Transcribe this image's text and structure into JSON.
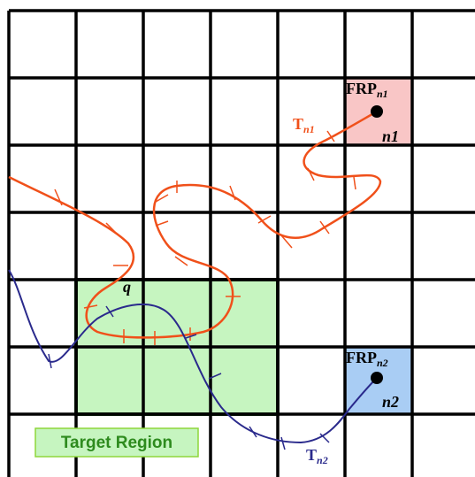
{
  "labels": {
    "frp_n1": {
      "main": "FRP",
      "sub": "n1"
    },
    "cell_n1": "n1",
    "traj_n1": {
      "main": "T",
      "sub": "n1"
    },
    "query": "q",
    "frp_n2": {
      "main": "FRP",
      "sub": "n2"
    },
    "cell_n2": "n2",
    "traj_n2": {
      "main": "T",
      "sub": "n2"
    },
    "target_region": "Target Region"
  }
}
